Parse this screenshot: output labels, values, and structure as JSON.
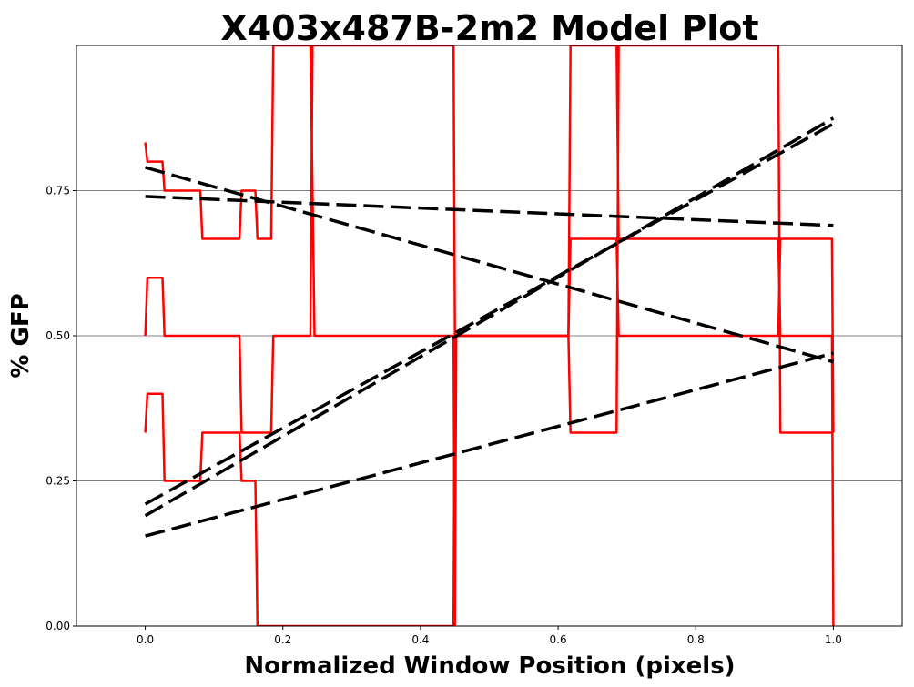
{
  "chart_data": {
    "type": "line",
    "title": "X403x487B-2m2 Model Plot",
    "xlabel": "Normalized Window Position (pixels)",
    "ylabel": "% GFP",
    "xlim": [
      -0.1,
      1.1
    ],
    "ylim": [
      0.0,
      1.0
    ],
    "x_ticks": [
      0.0,
      0.2,
      0.4,
      0.6,
      0.8,
      1.0
    ],
    "x_tick_labels": [
      "0.0",
      "0.2",
      "0.4",
      "0.6",
      "0.8",
      "1.0"
    ],
    "y_ticks": [
      0.0,
      0.25,
      0.5,
      0.75
    ],
    "y_tick_labels": [
      "0.00",
      "0.25",
      "0.50",
      "0.75"
    ],
    "grid": "horizontal",
    "legend": "none",
    "colors": {
      "data": "#ff0000",
      "model": "#000000",
      "grid": "#808080"
    },
    "series": [
      {
        "style": "solid",
        "color": "#ff0000",
        "points": [
          [
            0.0,
            0.833
          ],
          [
            0.003,
            0.8
          ],
          [
            0.025,
            0.8
          ],
          [
            0.028,
            0.75
          ],
          [
            0.08,
            0.75
          ],
          [
            0.083,
            0.667
          ],
          [
            0.137,
            0.667
          ],
          [
            0.14,
            0.75
          ],
          [
            0.16,
            0.75
          ],
          [
            0.163,
            0.667
          ],
          [
            0.183,
            0.667
          ],
          [
            0.186,
            1.0
          ],
          [
            0.24,
            1.0
          ],
          [
            0.243,
            0.75
          ],
          [
            0.246,
            0.5
          ],
          [
            0.448,
            0.5
          ],
          [
            0.45,
            0.0
          ],
          [
            0.452,
            0.5
          ],
          [
            0.615,
            0.5
          ],
          [
            0.618,
            1.0
          ],
          [
            0.685,
            1.0
          ],
          [
            0.688,
            0.667
          ],
          [
            0.92,
            0.667
          ],
          [
            0.923,
            0.5
          ],
          [
            0.998,
            0.5
          ],
          [
            1.0,
            0.0
          ]
        ]
      },
      {
        "style": "solid",
        "color": "#ff0000",
        "points": [
          [
            0.0,
            0.5
          ],
          [
            0.003,
            0.6
          ],
          [
            0.025,
            0.6
          ],
          [
            0.028,
            0.5
          ],
          [
            0.08,
            0.5
          ],
          [
            0.083,
            0.5
          ],
          [
            0.137,
            0.5
          ],
          [
            0.14,
            0.333
          ],
          [
            0.16,
            0.333
          ],
          [
            0.163,
            0.333
          ],
          [
            0.183,
            0.333
          ],
          [
            0.186,
            0.5
          ],
          [
            0.24,
            0.5
          ],
          [
            0.243,
            1.0
          ],
          [
            0.246,
            1.0
          ],
          [
            0.448,
            1.0
          ],
          [
            0.45,
            0.5
          ],
          [
            0.615,
            0.5
          ],
          [
            0.618,
            0.667
          ],
          [
            0.685,
            0.667
          ],
          [
            0.688,
            0.5
          ],
          [
            0.92,
            0.5
          ],
          [
            0.923,
            0.667
          ],
          [
            0.998,
            0.667
          ],
          [
            1.0,
            0.333
          ]
        ]
      },
      {
        "style": "solid",
        "color": "#ff0000",
        "points": [
          [
            0.0,
            0.333
          ],
          [
            0.003,
            0.4
          ],
          [
            0.025,
            0.4
          ],
          [
            0.028,
            0.25
          ],
          [
            0.08,
            0.25
          ],
          [
            0.083,
            0.333
          ],
          [
            0.137,
            0.333
          ],
          [
            0.14,
            0.25
          ],
          [
            0.16,
            0.25
          ],
          [
            0.163,
            0.0
          ],
          [
            0.183,
            0.0
          ],
          [
            0.186,
            0.0
          ],
          [
            0.448,
            0.0
          ],
          [
            0.45,
            0.5
          ],
          [
            0.615,
            0.5
          ],
          [
            0.618,
            0.333
          ],
          [
            0.685,
            0.333
          ],
          [
            0.688,
            1.0
          ],
          [
            0.92,
            1.0
          ],
          [
            0.923,
            0.333
          ],
          [
            1.0,
            0.333
          ]
        ]
      },
      {
        "style": "dashed",
        "color": "#000000",
        "points": [
          [
            0.0,
            0.74
          ],
          [
            1.0,
            0.69
          ]
        ]
      },
      {
        "style": "dashed",
        "color": "#000000",
        "points": [
          [
            0.0,
            0.79
          ],
          [
            1.0,
            0.455
          ]
        ]
      },
      {
        "style": "dashed",
        "color": "#000000",
        "points": [
          [
            0.0,
            0.21
          ],
          [
            1.0,
            0.865
          ]
        ]
      },
      {
        "style": "dashed",
        "color": "#000000",
        "points": [
          [
            0.0,
            0.19
          ],
          [
            1.0,
            0.875
          ]
        ]
      },
      {
        "style": "dashed",
        "color": "#000000",
        "points": [
          [
            0.0,
            0.155
          ],
          [
            1.0,
            0.47
          ]
        ]
      }
    ]
  }
}
